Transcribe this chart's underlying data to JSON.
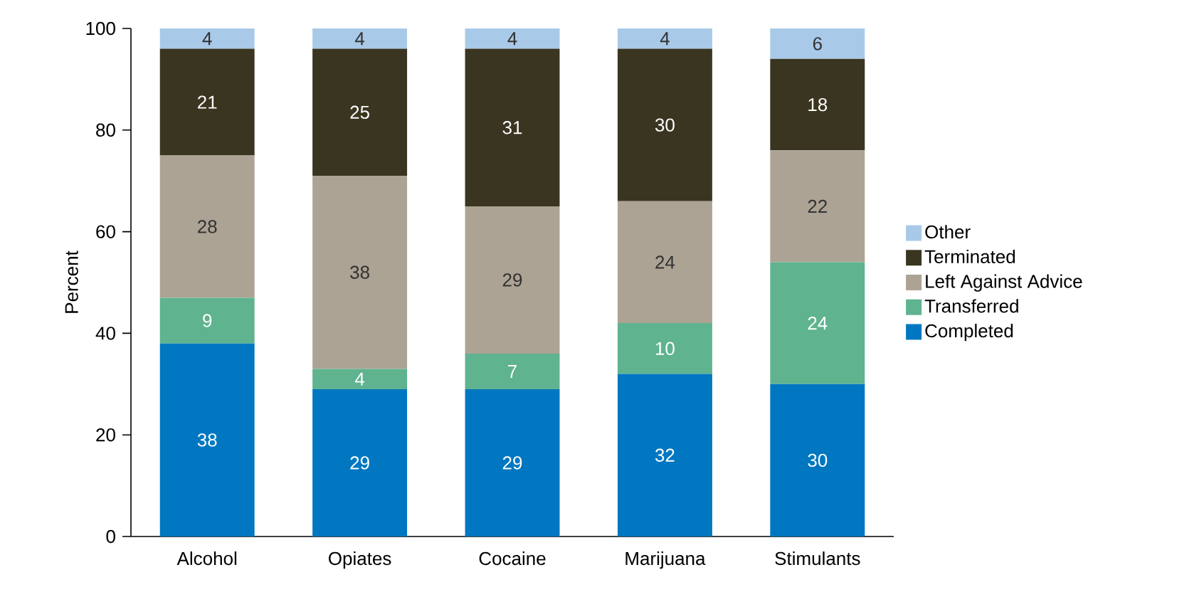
{
  "chart_data": {
    "type": "bar",
    "stacked": true,
    "ylabel": "Percent",
    "categories": [
      "Alcohol",
      "Opiates",
      "Cocaine",
      "Marijuana",
      "Stimulants"
    ],
    "series": [
      {
        "name": "Completed",
        "color": "#0077c0",
        "values": [
          38,
          29,
          29,
          32,
          30
        ]
      },
      {
        "name": "Transferred",
        "color": "#5fb38f",
        "values": [
          9,
          4,
          7,
          10,
          24
        ]
      },
      {
        "name": "Left Against Advice",
        "color": "#aca394",
        "values": [
          28,
          38,
          29,
          24,
          22
        ]
      },
      {
        "name": "Terminated",
        "color": "#3a3520",
        "values": [
          21,
          25,
          31,
          30,
          18
        ]
      },
      {
        "name": "Other",
        "color": "#a9c9e8",
        "values": [
          4,
          4,
          4,
          4,
          6
        ]
      }
    ],
    "ylim": [
      0,
      100
    ],
    "yticks": [
      0,
      20,
      40,
      60,
      80,
      100
    ],
    "data_labels": true,
    "legend": "right",
    "grid": false
  }
}
